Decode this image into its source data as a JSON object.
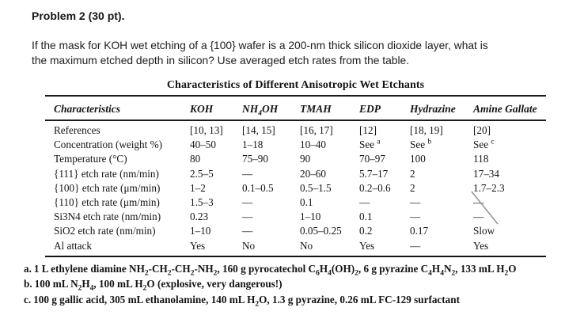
{
  "problem": {
    "title": "Problem 2 (30 pt).",
    "statement_lines": [
      "If the mask for KOH wet etching of a {100} wafer is a 200-nm thick silicon dioxide layer, what is",
      "the maximum etched depth in silicon? Use averaged etch rates from the table."
    ]
  },
  "table": {
    "title": "Characteristics of Different Anisotropic Wet Etchants",
    "columns": [
      "Characteristics",
      "KOH",
      "NH~4~OH",
      "TMAH",
      "EDP",
      "Hydrazine",
      "Amine Gallate"
    ],
    "rows": [
      {
        "label": "References",
        "values": [
          "[10, 13]",
          "[14, 15]",
          "[16, 17]",
          "[12]",
          "[18, 19]",
          "[20]"
        ]
      },
      {
        "label": "Concentration (weight %)",
        "values": [
          "40–50",
          "1–18",
          "10–40",
          "See ^a^",
          "See ^b^",
          "See ^c^"
        ]
      },
      {
        "label": "Temperature (°C)",
        "values": [
          "80",
          "75–90",
          "90",
          "70–97",
          "100",
          "118"
        ]
      },
      {
        "label": "{111} etch rate (nm/min)",
        "values": [
          "2.5–5",
          "—",
          "20–60",
          "5.7–17",
          "2",
          "17–34"
        ]
      },
      {
        "label": "{100} etch rate (μm/min)",
        "values": [
          "1–2",
          "0.1–0.5",
          "0.5–1.5",
          "0.2–0.6",
          "2",
          "1.7–2.3"
        ]
      },
      {
        "label": "{110} etch rate (μm/min)",
        "values": [
          "1.5–3",
          "—",
          "0.1",
          "—",
          "—",
          "—"
        ]
      },
      {
        "label": "Si3N4 etch rate (nm/min)",
        "values": [
          "0.23",
          "—",
          "1–10",
          "0.1",
          "—",
          "—"
        ]
      },
      {
        "label": "SiO2 etch rate (nm/min)",
        "values": [
          "1–10",
          "—",
          "0.05–0.25",
          "0.2",
          "0.17",
          "Slow"
        ]
      },
      {
        "label": "Al attack",
        "values": [
          "Yes",
          "No",
          "No",
          "Yes",
          "—",
          "Yes"
        ]
      }
    ]
  },
  "footnotes": [
    {
      "label": "a.",
      "text": "1 L ethylene diamine NH~2~-CH~2~-CH~2~-NH~2~, 160 g pyrocatechol C~6~H~4~(OH)~2~, 6 g pyrazine C~4~H~4~N~2~, 133 mL H~2~O"
    },
    {
      "label": "b.",
      "text": "100 mL N~2~H~4~, 100 mL H~2~O (explosive, very dangerous!)"
    },
    {
      "label": "c.",
      "text": "100 g gallic acid, 305 mL ethanolamine, 140 mL H~2~O, 1.3 g pyrazine, 0.26 mL FC-129 surfactant"
    }
  ]
}
